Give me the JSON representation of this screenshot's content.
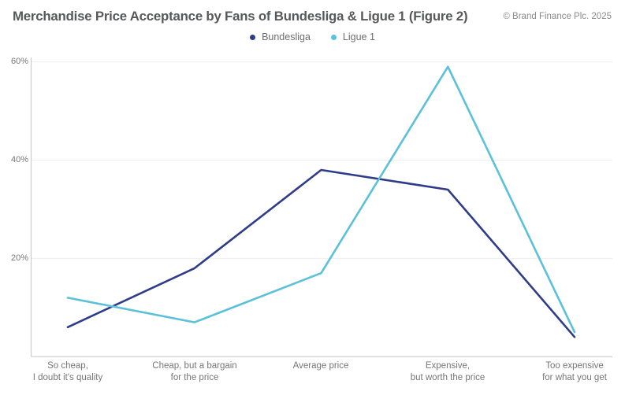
{
  "header": {
    "title": "Merchandise Price Acceptance by Fans of Bundesliga & Ligue 1 (Figure 2)",
    "copyright": "© Brand Finance Plc. 2025"
  },
  "chart_data": {
    "type": "line",
    "title": "Merchandise Price Acceptance by Fans of Bundesliga & Ligue 1 (Figure 2)",
    "categories": [
      "So cheap,\nI doubt it's quality",
      "Cheap, but a bargain\nfor the price",
      "Average price",
      "Expensive,\nbut worth the price",
      "Too expensive\nfor what you get"
    ],
    "series": [
      {
        "name": "Bundesliga",
        "color": "#2e3c8a",
        "values": [
          6,
          18,
          38,
          34,
          4
        ]
      },
      {
        "name": "Ligue 1",
        "color": "#5bc0da",
        "values": [
          12,
          7,
          17,
          59,
          5
        ]
      }
    ],
    "yticks": [
      "60%",
      "40%",
      "20%"
    ],
    "xlabel": "",
    "ylabel": "",
    "unit": "%",
    "ylim": [
      0,
      62
    ],
    "grid": "horizontal",
    "legend_position": "top-center",
    "colors": {
      "gridline": "#eeeeef",
      "axis": "#c9ccd3",
      "title_text": "#57585a",
      "label_text": "#757678"
    }
  }
}
